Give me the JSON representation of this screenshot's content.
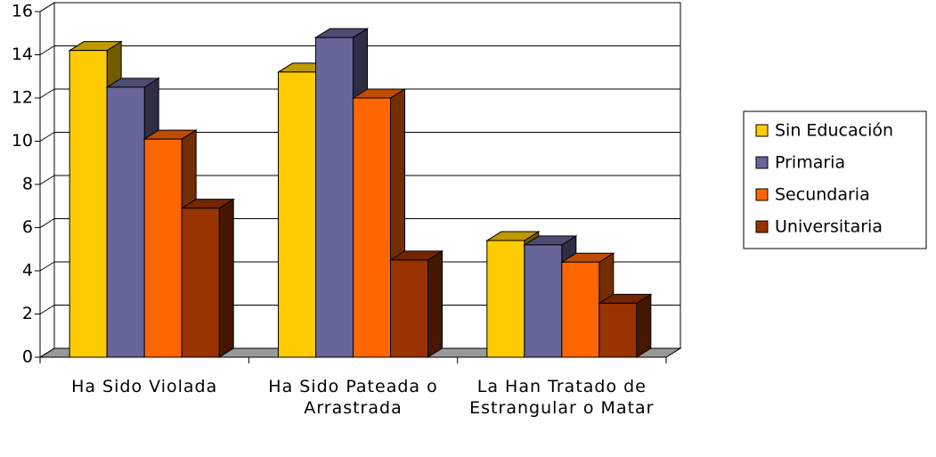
{
  "chart_data": {
    "type": "bar3d",
    "categories": [
      "Ha Sido Violada",
      "Ha Sido Pateada o Arrastrada",
      "La Han Tratado de Estrangular o Matar"
    ],
    "series": [
      {
        "name": "Sin Educación",
        "color": "#ffcc00",
        "values": [
          14.2,
          13.2,
          5.4
        ]
      },
      {
        "name": "Primaria",
        "color": "#666699",
        "values": [
          12.5,
          14.8,
          5.2
        ]
      },
      {
        "name": "Secundaria",
        "color": "#ff6600",
        "values": [
          10.1,
          12.0,
          4.4
        ]
      },
      {
        "name": "Universitaria",
        "color": "#993300",
        "values": [
          6.9,
          4.5,
          2.5
        ]
      }
    ],
    "ylim": [
      0,
      16
    ],
    "yticks": [
      0,
      2,
      4,
      6,
      8,
      10,
      12,
      14,
      16
    ],
    "grid": true,
    "legend": "right"
  }
}
